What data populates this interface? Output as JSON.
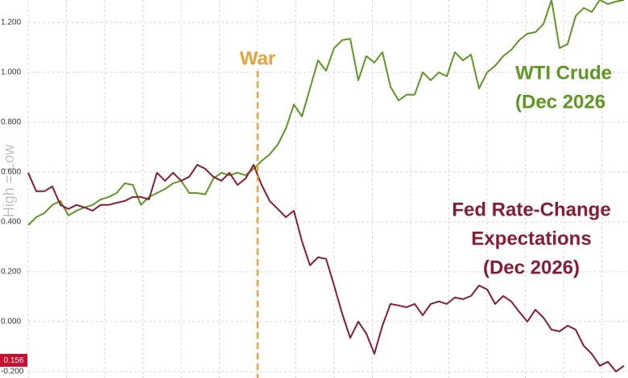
{
  "chart_data": {
    "type": "line",
    "y_axis_label": "High = Low",
    "annotations": {
      "event": "War",
      "wti_label": [
        "WTI Crude",
        "(Dec 2026"
      ],
      "fed_label": [
        "Fed Rate-Change",
        "Expectations",
        "(Dec 2026)"
      ],
      "last_value": "0.156"
    },
    "categories": [
      null,
      null,
      null,
      null,
      null,
      null,
      null,
      null,
      null,
      null,
      null,
      null,
      null,
      null,
      null,
      null,
      null,
      null,
      null,
      null,
      null,
      null,
      null,
      null,
      null,
      null,
      null,
      null,
      null,
      null,
      null,
      null,
      null,
      null,
      null,
      null,
      null,
      null,
      null,
      null,
      null,
      null,
      null,
      null,
      null,
      null,
      null,
      null,
      null,
      null,
      null,
      null,
      null,
      null,
      null,
      null,
      null,
      null,
      null,
      null,
      null,
      null,
      null,
      null,
      null,
      null,
      null,
      null,
      null,
      null,
      null,
      null,
      null,
      null,
      null
    ],
    "series": [
      {
        "name": "WTI Crude",
        "color": "#5b9a1e",
        "values": [
          0.387,
          0.419,
          0.435,
          0.468,
          0.484,
          0.426,
          0.445,
          0.458,
          0.468,
          0.49,
          0.5,
          0.516,
          0.555,
          0.548,
          0.468,
          0.5,
          0.516,
          0.532,
          0.555,
          0.565,
          0.516,
          0.516,
          0.51,
          0.574,
          0.597,
          0.587,
          0.597,
          0.587,
          0.613,
          0.645,
          0.671,
          0.71,
          0.774,
          0.871,
          0.823,
          0.935,
          1.048,
          1.006,
          1.097,
          1.129,
          1.135,
          0.968,
          1.065,
          1.039,
          1.081,
          0.942,
          0.887,
          0.91,
          0.91,
          1.0,
          0.968,
          1.0,
          0.984,
          1.081,
          1.048,
          1.071,
          0.935,
          1.0,
          1.026,
          1.065,
          1.09,
          1.129,
          1.155,
          1.161,
          1.194,
          1.29,
          1.097,
          1.113,
          1.226,
          1.258,
          1.242,
          1.29,
          1.274,
          1.284,
          1.29
        ]
      },
      {
        "name": "Fed Rate-Change Expectations",
        "color": "#8b1a34",
        "values": [
          0.597,
          0.523,
          0.523,
          0.542,
          0.468,
          0.452,
          0.468,
          0.458,
          0.445,
          0.468,
          0.468,
          0.477,
          0.484,
          0.5,
          0.5,
          0.49,
          0.597,
          0.565,
          0.597,
          0.565,
          0.581,
          0.629,
          0.613,
          0.581,
          0.565,
          0.597,
          0.548,
          0.574,
          0.629,
          0.548,
          0.484,
          0.452,
          0.419,
          0.445,
          0.323,
          0.226,
          0.258,
          0.252,
          0.145,
          0.032,
          -0.065,
          0.0,
          -0.048,
          -0.129,
          -0.016,
          0.071,
          0.065,
          0.058,
          0.071,
          0.026,
          0.071,
          0.081,
          0.071,
          0.097,
          0.09,
          0.103,
          0.145,
          0.129,
          0.071,
          0.103,
          0.081,
          0.039,
          0.0,
          0.048,
          0.016,
          -0.032,
          -0.039,
          -0.016,
          -0.032,
          -0.097,
          -0.129,
          -0.177,
          -0.161,
          -0.2,
          -0.177
        ]
      }
    ],
    "ylim": [
      -0.226,
      1.29
    ],
    "yticks": [
      {
        "value": 1.2,
        "label": "1.200"
      },
      {
        "value": 1.0,
        "label": "1.000"
      },
      {
        "value": 0.8,
        "label": "0.800"
      },
      {
        "value": 0.6,
        "label": "0.600"
      },
      {
        "value": 0.4,
        "label": "0.400"
      },
      {
        "value": 0.2,
        "label": "0.200"
      },
      {
        "value": 0.0,
        "label": "0.000"
      },
      {
        "value": -0.2,
        "label": "-0.200"
      }
    ],
    "grid": true
  }
}
